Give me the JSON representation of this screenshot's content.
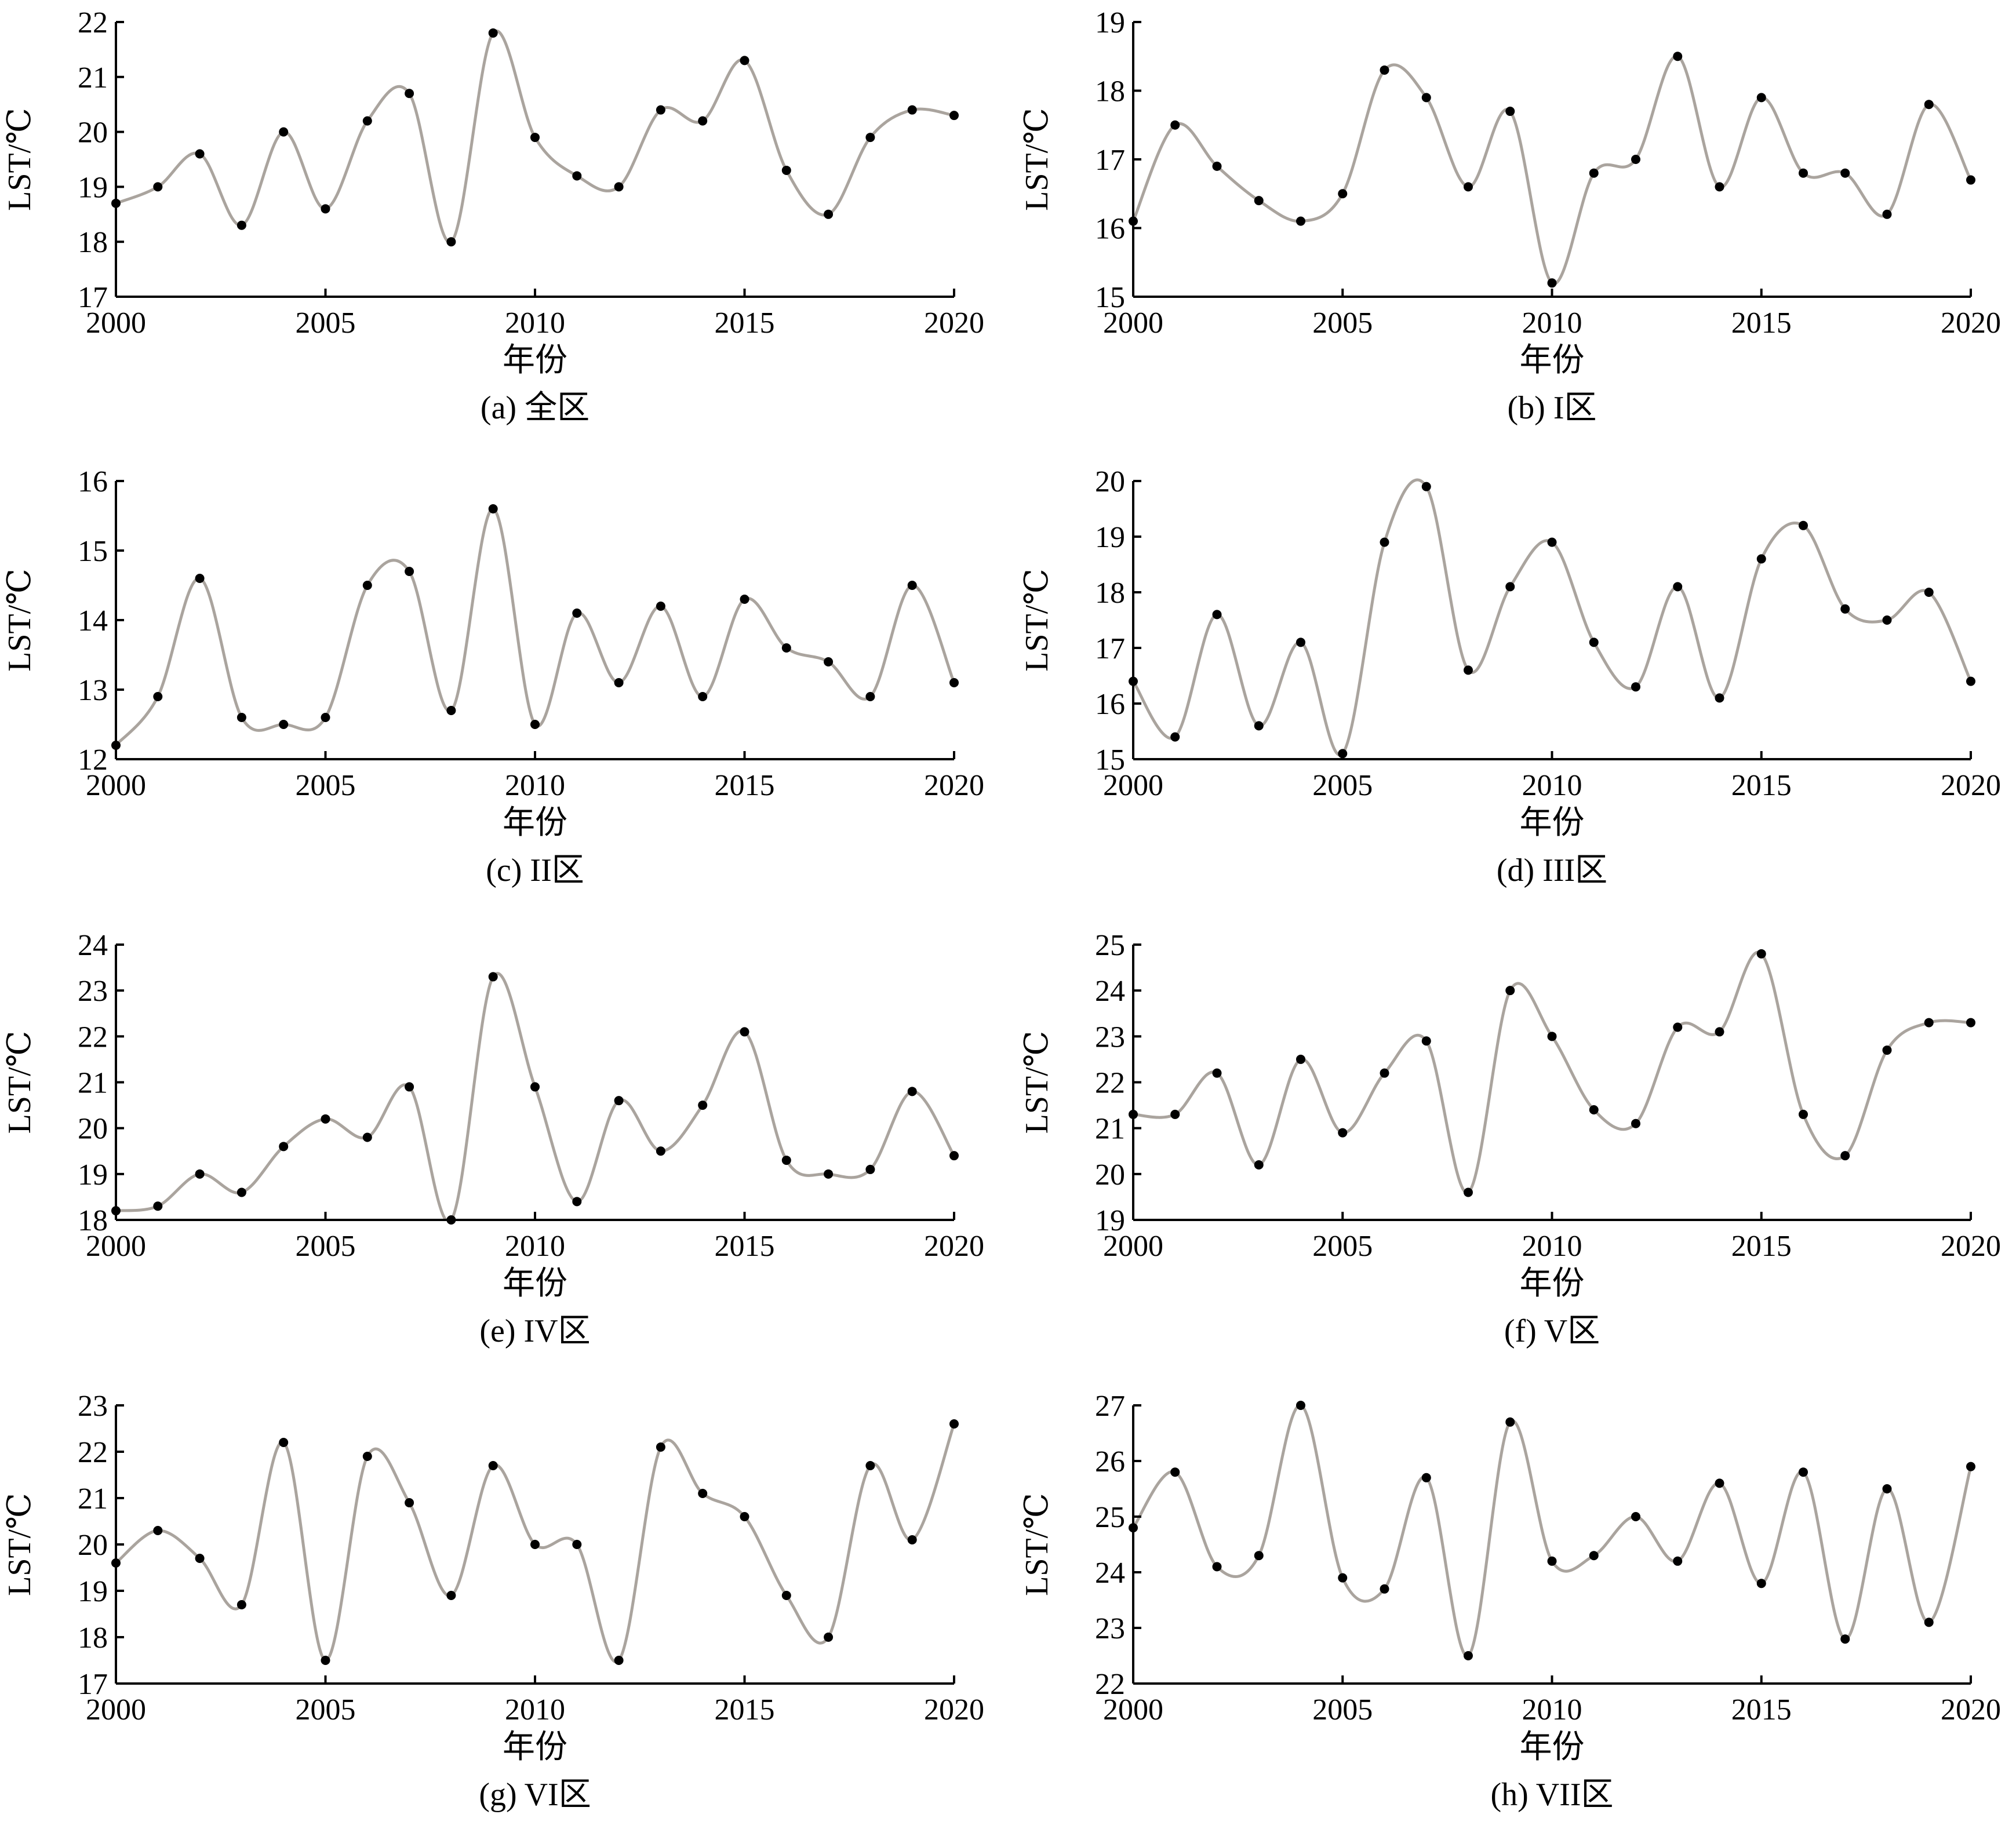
{
  "figure": {
    "xlabel": "年份",
    "ylabel": "LST/℃"
  },
  "chart_data": [
    {
      "type": "line",
      "caption": "(a) 全区",
      "xlabel": "年份",
      "ylabel": "LST/℃",
      "xlim": [
        2000,
        2020
      ],
      "ylim": [
        17,
        22
      ],
      "xticks": [
        2000,
        2005,
        2010,
        2015,
        2020
      ],
      "yticks": [
        17,
        18,
        19,
        20,
        21,
        22
      ],
      "x": [
        2000,
        2001,
        2002,
        2003,
        2004,
        2005,
        2006,
        2007,
        2008,
        2009,
        2010,
        2011,
        2012,
        2013,
        2014,
        2015,
        2016,
        2017,
        2018,
        2019,
        2020
      ],
      "values": [
        18.7,
        19.0,
        19.6,
        18.3,
        20.0,
        18.6,
        20.2,
        20.7,
        18.0,
        21.8,
        19.9,
        19.2,
        19.0,
        20.4,
        20.2,
        21.3,
        19.3,
        18.5,
        19.9,
        20.4,
        20.3
      ]
    },
    {
      "type": "line",
      "caption": "(b) I区",
      "xlabel": "年份",
      "ylabel": "LST/℃",
      "xlim": [
        2000,
        2020
      ],
      "ylim": [
        15,
        19
      ],
      "xticks": [
        2000,
        2005,
        2010,
        2015,
        2020
      ],
      "yticks": [
        15,
        16,
        17,
        18,
        19
      ],
      "x": [
        2000,
        2001,
        2002,
        2003,
        2004,
        2005,
        2006,
        2007,
        2008,
        2009,
        2010,
        2011,
        2012,
        2013,
        2014,
        2015,
        2016,
        2017,
        2018,
        2019,
        2020
      ],
      "values": [
        16.1,
        17.5,
        16.9,
        16.4,
        16.1,
        16.5,
        18.3,
        17.9,
        16.6,
        17.7,
        15.2,
        16.8,
        17.0,
        18.5,
        16.6,
        17.9,
        16.8,
        16.8,
        16.2,
        17.8,
        16.7
      ]
    },
    {
      "type": "line",
      "caption": "(c) II区",
      "xlabel": "年份",
      "ylabel": "LST/℃",
      "xlim": [
        2000,
        2020
      ],
      "ylim": [
        12,
        16
      ],
      "xticks": [
        2000,
        2005,
        2010,
        2015,
        2020
      ],
      "yticks": [
        12,
        13,
        14,
        15,
        16
      ],
      "x": [
        2000,
        2001,
        2002,
        2003,
        2004,
        2005,
        2006,
        2007,
        2008,
        2009,
        2010,
        2011,
        2012,
        2013,
        2014,
        2015,
        2016,
        2017,
        2018,
        2019,
        2020
      ],
      "values": [
        12.2,
        12.9,
        14.6,
        12.6,
        12.5,
        12.6,
        14.5,
        14.7,
        12.7,
        15.6,
        12.5,
        14.1,
        13.1,
        14.2,
        12.9,
        14.3,
        13.6,
        13.4,
        12.9,
        14.5,
        13.1
      ]
    },
    {
      "type": "line",
      "caption": "(d) III区",
      "xlabel": "年份",
      "ylabel": "LST/℃",
      "xlim": [
        2000,
        2020
      ],
      "ylim": [
        15,
        20
      ],
      "xticks": [
        2000,
        2005,
        2010,
        2015,
        2020
      ],
      "yticks": [
        15,
        16,
        17,
        18,
        19,
        20
      ],
      "x": [
        2000,
        2001,
        2002,
        2003,
        2004,
        2005,
        2006,
        2007,
        2008,
        2009,
        2010,
        2011,
        2012,
        2013,
        2014,
        2015,
        2016,
        2017,
        2018,
        2019,
        2020
      ],
      "values": [
        16.4,
        15.4,
        17.6,
        15.6,
        17.1,
        15.1,
        18.9,
        19.9,
        16.6,
        18.1,
        18.9,
        17.1,
        16.3,
        18.1,
        16.1,
        18.6,
        19.2,
        17.7,
        17.5,
        18.0,
        16.4
      ]
    },
    {
      "type": "line",
      "caption": "(e) IV区",
      "xlabel": "年份",
      "ylabel": "LST/℃",
      "xlim": [
        2000,
        2020
      ],
      "ylim": [
        18,
        24
      ],
      "xticks": [
        2000,
        2005,
        2010,
        2015,
        2020
      ],
      "yticks": [
        18,
        19,
        20,
        21,
        22,
        23,
        24
      ],
      "x": [
        2000,
        2001,
        2002,
        2003,
        2004,
        2005,
        2006,
        2007,
        2008,
        2009,
        2010,
        2011,
        2012,
        2013,
        2014,
        2015,
        2016,
        2017,
        2018,
        2019,
        2020
      ],
      "values": [
        18.2,
        18.3,
        19.0,
        18.6,
        19.6,
        20.2,
        19.8,
        20.9,
        18.0,
        23.3,
        20.9,
        18.4,
        20.6,
        19.5,
        20.5,
        22.1,
        19.3,
        19.0,
        19.1,
        20.8,
        19.4
      ]
    },
    {
      "type": "line",
      "caption": "(f) V区",
      "xlabel": "年份",
      "ylabel": "LST/℃",
      "xlim": [
        2000,
        2020
      ],
      "ylim": [
        19,
        25
      ],
      "xticks": [
        2000,
        2005,
        2010,
        2015,
        2020
      ],
      "yticks": [
        19,
        20,
        21,
        22,
        23,
        24,
        25
      ],
      "x": [
        2000,
        2001,
        2002,
        2003,
        2004,
        2005,
        2006,
        2007,
        2008,
        2009,
        2010,
        2011,
        2012,
        2013,
        2014,
        2015,
        2016,
        2017,
        2018,
        2019,
        2020
      ],
      "values": [
        21.3,
        21.3,
        22.2,
        20.2,
        22.5,
        20.9,
        22.2,
        22.9,
        19.6,
        24.0,
        23.0,
        21.4,
        21.1,
        23.2,
        23.1,
        24.8,
        21.3,
        20.4,
        22.7,
        23.3,
        23.3
      ]
    },
    {
      "type": "line",
      "caption": "(g) VI区",
      "xlabel": "年份",
      "ylabel": "LST/℃",
      "xlim": [
        2000,
        2020
      ],
      "ylim": [
        17,
        23
      ],
      "xticks": [
        2000,
        2005,
        2010,
        2015,
        2020
      ],
      "yticks": [
        17,
        18,
        19,
        20,
        21,
        22,
        23
      ],
      "x": [
        2000,
        2001,
        2002,
        2003,
        2004,
        2005,
        2006,
        2007,
        2008,
        2009,
        2010,
        2011,
        2012,
        2013,
        2014,
        2015,
        2016,
        2017,
        2018,
        2019,
        2020
      ],
      "values": [
        19.6,
        20.3,
        19.7,
        18.7,
        22.2,
        17.5,
        21.9,
        20.9,
        18.9,
        21.7,
        20.0,
        20.0,
        17.5,
        22.1,
        21.1,
        20.6,
        18.9,
        18.0,
        21.7,
        20.1,
        22.6
      ]
    },
    {
      "type": "line",
      "caption": "(h) VII区",
      "xlabel": "年份",
      "ylabel": "LST/℃",
      "xlim": [
        2000,
        2020
      ],
      "ylim": [
        22,
        27
      ],
      "xticks": [
        2000,
        2005,
        2010,
        2015,
        2020
      ],
      "yticks": [
        22,
        23,
        24,
        25,
        26,
        27
      ],
      "x": [
        2000,
        2001,
        2002,
        2003,
        2004,
        2005,
        2006,
        2007,
        2008,
        2009,
        2010,
        2011,
        2012,
        2013,
        2014,
        2015,
        2016,
        2017,
        2018,
        2019,
        2020
      ],
      "values": [
        24.8,
        25.8,
        24.1,
        24.3,
        27.0,
        23.9,
        23.7,
        25.7,
        22.5,
        26.7,
        24.2,
        24.3,
        25.0,
        24.2,
        25.6,
        23.8,
        25.8,
        22.8,
        25.5,
        23.1,
        25.9
      ]
    }
  ]
}
